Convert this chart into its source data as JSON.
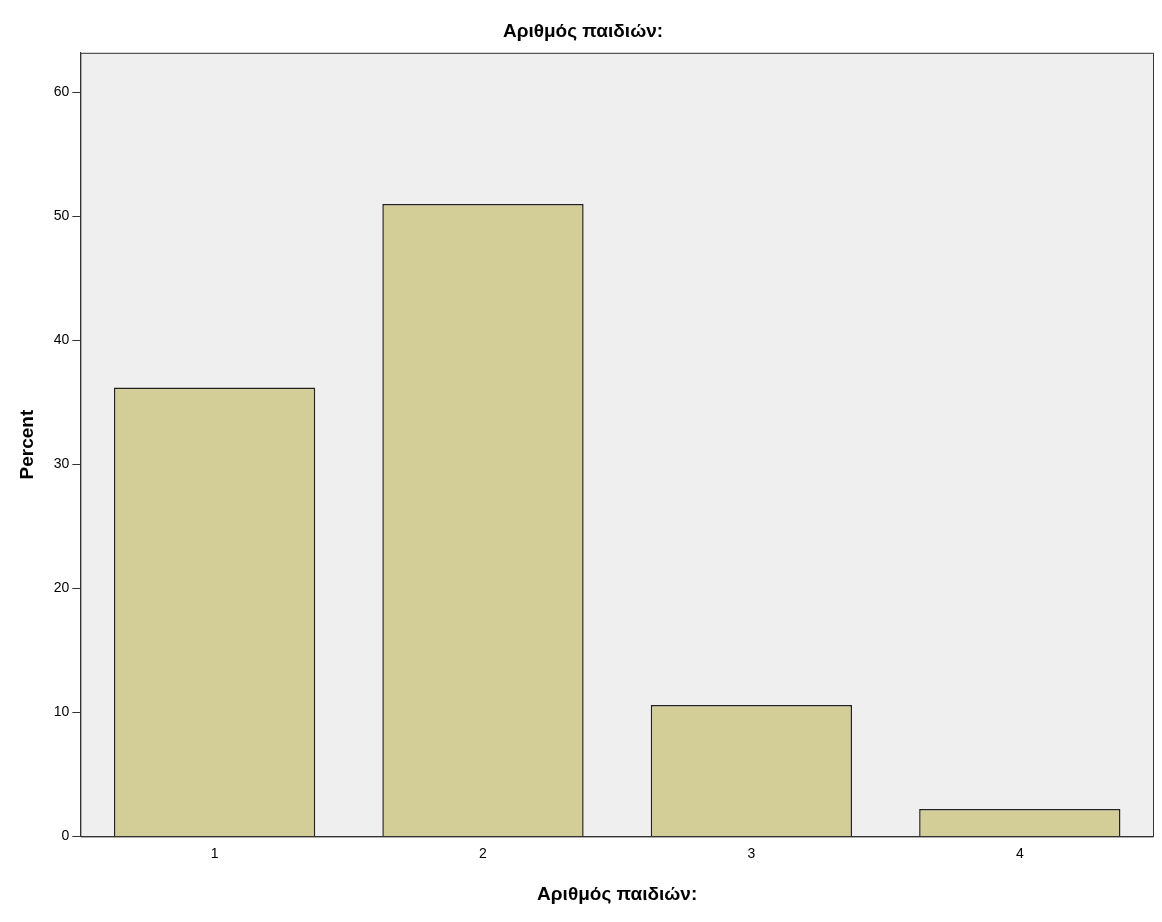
{
  "chart_data": {
    "type": "bar",
    "title": "Αριθμός παιδιών:",
    "xlabel": "Αριθμός παιδιών:",
    "ylabel": "Percent",
    "categories": [
      "1",
      "2",
      "3",
      "4"
    ],
    "values": [
      36.2,
      51.0,
      10.6,
      2.2
    ],
    "color": "#d3cd98",
    "ylim": [
      0,
      63.2
    ],
    "yticks": [
      0,
      10,
      20,
      30,
      40,
      50,
      60
    ],
    "grid": false,
    "legend": false
  }
}
